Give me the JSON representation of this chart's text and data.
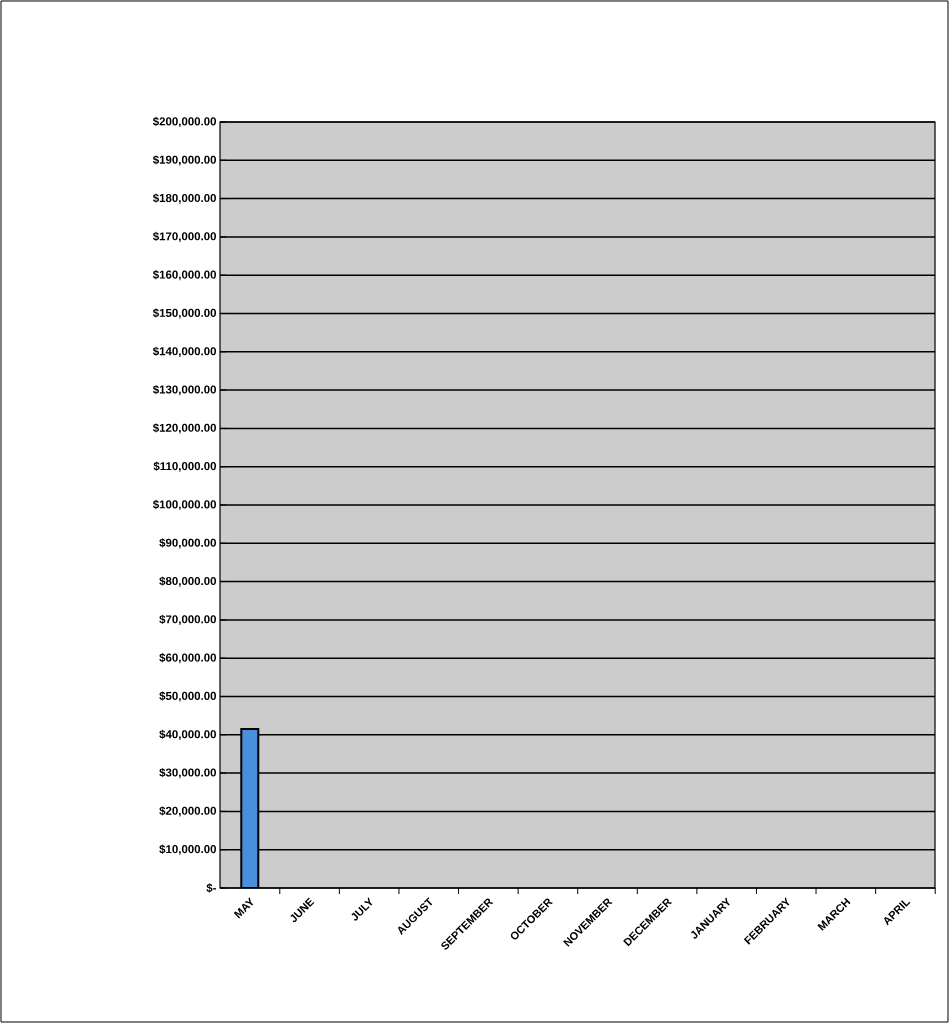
{
  "chart_data": {
    "type": "bar",
    "categories": [
      "MAY",
      "JUNE",
      "JULY",
      "AUGUST",
      "SEPTEMBER",
      "OCTOBER",
      "NOVEMBER",
      "DECEMBER",
      "JANUARY",
      "FEBRUARY",
      "MARCH",
      "APRIL"
    ],
    "values": [
      41500,
      null,
      null,
      null,
      null,
      null,
      null,
      null,
      null,
      null,
      null,
      null
    ],
    "color": "#4a8fdc",
    "ylim": [
      0,
      200000
    ],
    "yticks": [
      {
        "value": 0,
        "label": "$-"
      },
      {
        "value": 10000,
        "label": "$10,000.00"
      },
      {
        "value": 20000,
        "label": "$20,000.00"
      },
      {
        "value": 30000,
        "label": "$30,000.00"
      },
      {
        "value": 40000,
        "label": "$40,000.00"
      },
      {
        "value": 50000,
        "label": "$50,000.00"
      },
      {
        "value": 60000,
        "label": "$60,000.00"
      },
      {
        "value": 70000,
        "label": "$70,000.00"
      },
      {
        "value": 80000,
        "label": "$80,000.00"
      },
      {
        "value": 90000,
        "label": "$90,000.00"
      },
      {
        "value": 100000,
        "label": "$100,000.00"
      },
      {
        "value": 110000,
        "label": "$110,000.00"
      },
      {
        "value": 120000,
        "label": "$120,000.00"
      },
      {
        "value": 130000,
        "label": "$130,000.00"
      },
      {
        "value": 140000,
        "label": "$140,000.00"
      },
      {
        "value": 150000,
        "label": "$150,000.00"
      },
      {
        "value": 160000,
        "label": "$160,000.00"
      },
      {
        "value": 170000,
        "label": "$170,000.00"
      },
      {
        "value": 180000,
        "label": "$180,000.00"
      },
      {
        "value": 190000,
        "label": "$190,000.00"
      },
      {
        "value": 200000,
        "label": "$200,000.00"
      }
    ],
    "grid": "y"
  }
}
